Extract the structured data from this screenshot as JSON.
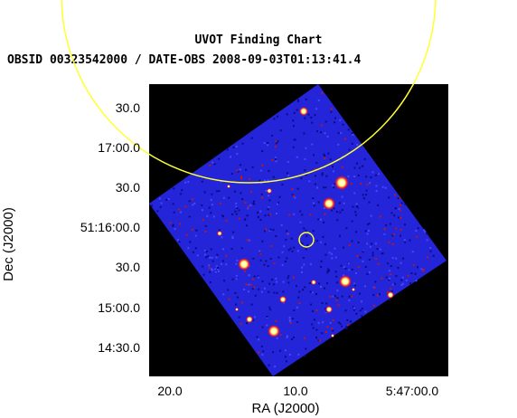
{
  "title": "UVOT Finding Chart",
  "subtitle": "OBSID 00323542000 / DATE-OBS 2008-09-03T01:13:41.4",
  "axes": {
    "xlabel": "RA (J2000)",
    "ylabel": "Dec (J2000)",
    "x_ticks": [
      "20.0",
      "10.0",
      "5:47:00.0"
    ],
    "y_ticks": [
      "30.0",
      "17:00.0",
      "30.0",
      "51:16:00.0",
      "30.0",
      "15:00.0",
      "14:30.0"
    ]
  },
  "colors": {
    "frame_background": "#000000",
    "image_field": "#2424d8",
    "error_circle": "#ffff33",
    "target_circle": "#ffff33"
  }
}
